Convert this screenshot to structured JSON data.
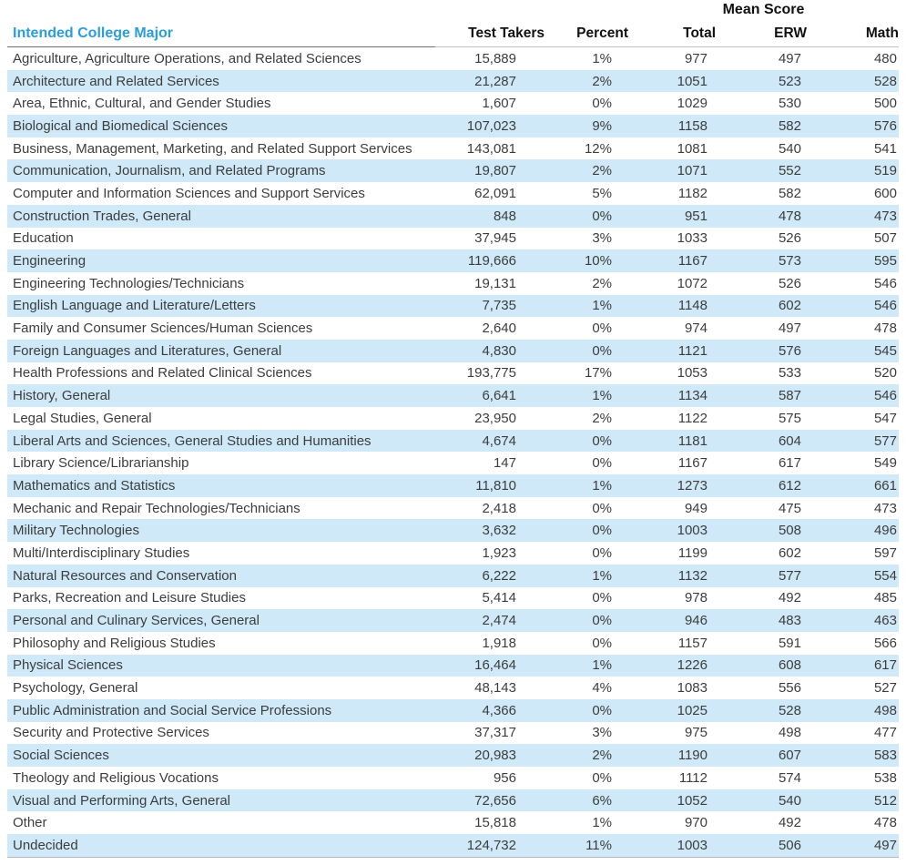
{
  "table": {
    "group_header": "Mean Score",
    "columns": {
      "major": "Intended College Major",
      "test_takers": "Test Takers",
      "percent": "Percent",
      "total": "Total",
      "erw": "ERW",
      "math": "Math"
    },
    "rows": [
      {
        "major": "Agriculture, Agriculture Operations, and Related Sciences",
        "test_takers": "15,889",
        "percent": "1%",
        "total": "977",
        "erw": "497",
        "math": "480"
      },
      {
        "major": "Architecture and Related Services",
        "test_takers": "21,287",
        "percent": "2%",
        "total": "1051",
        "erw": "523",
        "math": "528"
      },
      {
        "major": "Area, Ethnic, Cultural, and Gender Studies",
        "test_takers": "1,607",
        "percent": "0%",
        "total": "1029",
        "erw": "530",
        "math": "500"
      },
      {
        "major": "Biological and Biomedical Sciences",
        "test_takers": "107,023",
        "percent": "9%",
        "total": "1158",
        "erw": "582",
        "math": "576"
      },
      {
        "major": "Business, Management, Marketing, and Related Support Services",
        "test_takers": "143,081",
        "percent": "12%",
        "total": "1081",
        "erw": "540",
        "math": "541"
      },
      {
        "major": "Communication, Journalism, and Related Programs",
        "test_takers": "19,807",
        "percent": "2%",
        "total": "1071",
        "erw": "552",
        "math": "519"
      },
      {
        "major": "Computer and Information Sciences and Support Services",
        "test_takers": "62,091",
        "percent": "5%",
        "total": "1182",
        "erw": "582",
        "math": "600"
      },
      {
        "major": "Construction Trades, General",
        "test_takers": "848",
        "percent": "0%",
        "total": "951",
        "erw": "478",
        "math": "473"
      },
      {
        "major": "Education",
        "test_takers": "37,945",
        "percent": "3%",
        "total": "1033",
        "erw": "526",
        "math": "507"
      },
      {
        "major": "Engineering",
        "test_takers": "119,666",
        "percent": "10%",
        "total": "1167",
        "erw": "573",
        "math": "595"
      },
      {
        "major": "Engineering Technologies/Technicians",
        "test_takers": "19,131",
        "percent": "2%",
        "total": "1072",
        "erw": "526",
        "math": "546"
      },
      {
        "major": "English Language and Literature/Letters",
        "test_takers": "7,735",
        "percent": "1%",
        "total": "1148",
        "erw": "602",
        "math": "546"
      },
      {
        "major": "Family and Consumer Sciences/Human Sciences",
        "test_takers": "2,640",
        "percent": "0%",
        "total": "974",
        "erw": "497",
        "math": "478"
      },
      {
        "major": "Foreign Languages and Literatures, General",
        "test_takers": "4,830",
        "percent": "0%",
        "total": "1121",
        "erw": "576",
        "math": "545"
      },
      {
        "major": "Health Professions and Related Clinical Sciences",
        "test_takers": "193,775",
        "percent": "17%",
        "total": "1053",
        "erw": "533",
        "math": "520"
      },
      {
        "major": "History, General",
        "test_takers": "6,641",
        "percent": "1%",
        "total": "1134",
        "erw": "587",
        "math": "546"
      },
      {
        "major": "Legal Studies, General",
        "test_takers": "23,950",
        "percent": "2%",
        "total": "1122",
        "erw": "575",
        "math": "547"
      },
      {
        "major": "Liberal Arts and Sciences, General Studies and Humanities",
        "test_takers": "4,674",
        "percent": "0%",
        "total": "1181",
        "erw": "604",
        "math": "577"
      },
      {
        "major": "Library Science/Librarianship",
        "test_takers": "147",
        "percent": "0%",
        "total": "1167",
        "erw": "617",
        "math": "549"
      },
      {
        "major": "Mathematics and Statistics",
        "test_takers": "11,810",
        "percent": "1%",
        "total": "1273",
        "erw": "612",
        "math": "661"
      },
      {
        "major": "Mechanic and Repair Technologies/Technicians",
        "test_takers": "2,418",
        "percent": "0%",
        "total": "949",
        "erw": "475",
        "math": "473"
      },
      {
        "major": "Military Technologies",
        "test_takers": "3,632",
        "percent": "0%",
        "total": "1003",
        "erw": "508",
        "math": "496"
      },
      {
        "major": "Multi/Interdisciplinary Studies",
        "test_takers": "1,923",
        "percent": "0%",
        "total": "1199",
        "erw": "602",
        "math": "597"
      },
      {
        "major": "Natural Resources and Conservation",
        "test_takers": "6,222",
        "percent": "1%",
        "total": "1132",
        "erw": "577",
        "math": "554"
      },
      {
        "major": "Parks, Recreation and Leisure Studies",
        "test_takers": "5,414",
        "percent": "0%",
        "total": "978",
        "erw": "492",
        "math": "485"
      },
      {
        "major": "Personal and Culinary Services, General",
        "test_takers": "2,474",
        "percent": "0%",
        "total": "946",
        "erw": "483",
        "math": "463"
      },
      {
        "major": "Philosophy and Religious Studies",
        "test_takers": "1,918",
        "percent": "0%",
        "total": "1157",
        "erw": "591",
        "math": "566"
      },
      {
        "major": "Physical Sciences",
        "test_takers": "16,464",
        "percent": "1%",
        "total": "1226",
        "erw": "608",
        "math": "617"
      },
      {
        "major": "Psychology, General",
        "test_takers": "48,143",
        "percent": "4%",
        "total": "1083",
        "erw": "556",
        "math": "527"
      },
      {
        "major": "Public Administration and Social Service Professions",
        "test_takers": "4,366",
        "percent": "0%",
        "total": "1025",
        "erw": "528",
        "math": "498"
      },
      {
        "major": "Security and Protective Services",
        "test_takers": "37,317",
        "percent": "3%",
        "total": "975",
        "erw": "498",
        "math": "477"
      },
      {
        "major": "Social Sciences",
        "test_takers": "20,983",
        "percent": "2%",
        "total": "1190",
        "erw": "607",
        "math": "583"
      },
      {
        "major": "Theology and Religious Vocations",
        "test_takers": "956",
        "percent": "0%",
        "total": "1112",
        "erw": "574",
        "math": "538"
      },
      {
        "major": "Visual and Performing Arts, General",
        "test_takers": "72,656",
        "percent": "6%",
        "total": "1052",
        "erw": "540",
        "math": "512"
      },
      {
        "major": "Other",
        "test_takers": "15,818",
        "percent": "1%",
        "total": "970",
        "erw": "492",
        "math": "478"
      },
      {
        "major": "Undecided",
        "test_takers": "124,732",
        "percent": "11%",
        "total": "1003",
        "erw": "506",
        "math": "497"
      }
    ]
  },
  "colors": {
    "header_accent": "#2b9dda",
    "row_band": "#cfe9f8",
    "body_text": "#3d3d3d",
    "header_text": "#111111"
  }
}
